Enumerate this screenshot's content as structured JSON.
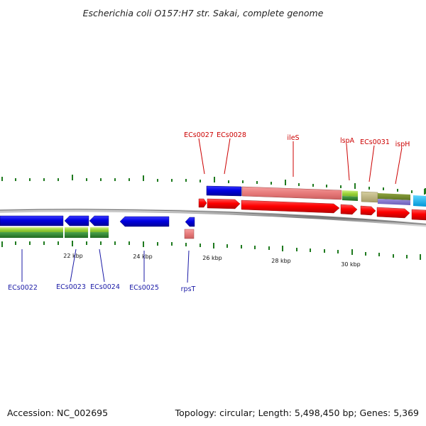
{
  "title": "Escherichia coli O157:H7 str. Sakai, complete genome",
  "footer": {
    "accession": "Accession: NC_002695",
    "summary": "Topology: circular; Length: 5,498,450 bp; Genes: 5,369"
  },
  "scale_labels": [
    "22 kbp",
    "24 kbp",
    "26 kbp",
    "28 kbp",
    "30 kbp"
  ],
  "gene_labels_top": [
    "ECs0027",
    "ECs0028",
    "ileS",
    "lspA",
    "ECs0031",
    "ispH"
  ],
  "gene_labels_bottom": [
    "ECs0022",
    "ECs0023",
    "ECs0024",
    "ECs0025",
    "rpsT"
  ],
  "colors": {
    "forward_cds": "#ff0000",
    "reverse_cds": "#0000dd",
    "label_forward": "#cc0000",
    "label_reverse": "#1a1aa6",
    "tick": "#1f7a1f",
    "backbone": "#808080"
  }
}
